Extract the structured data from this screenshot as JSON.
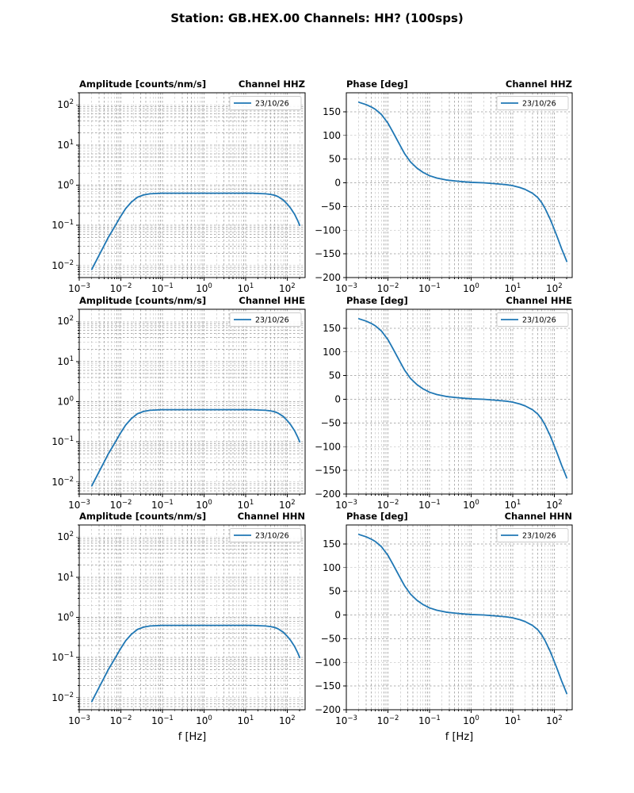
{
  "title": "Station: GB.HEX.00 Channels: HH? (100sps)",
  "xlabel": "f [Hz]",
  "legend_label": "23/10/26",
  "style": {
    "line_color": "#1f77b4",
    "grid_color": "#b0b0b0",
    "axis_color": "#000000",
    "legend_border": "#cccccc",
    "background": "#ffffff"
  },
  "chart_data": [
    {
      "type": "line",
      "kind": "amplitude",
      "row": 0,
      "col": 0,
      "title": "Amplitude [counts/nm/s]",
      "channel": "Channel HHZ",
      "legend": "23/10/26",
      "xscale": "log",
      "yscale": "log",
      "xlim": [
        0.001,
        270
      ],
      "ylim": [
        0.005,
        200
      ],
      "xticks": [
        -3,
        -2,
        -1,
        0,
        1,
        2
      ],
      "yticks": [
        -2,
        -1,
        0,
        1,
        2
      ],
      "x": [
        0.002,
        0.003,
        0.004,
        0.005,
        0.007,
        0.01,
        0.013,
        0.018,
        0.025,
        0.035,
        0.05,
        0.07,
        0.1,
        0.15,
        0.25,
        0.4,
        0.7,
        1,
        2,
        4,
        7,
        10,
        15,
        20,
        30,
        40,
        50,
        60,
        80,
        100,
        120,
        150,
        180,
        200
      ],
      "y": [
        0.008,
        0.018,
        0.032,
        0.05,
        0.09,
        0.17,
        0.26,
        0.38,
        0.5,
        0.57,
        0.61,
        0.62,
        0.63,
        0.63,
        0.63,
        0.63,
        0.63,
        0.63,
        0.63,
        0.63,
        0.63,
        0.63,
        0.63,
        0.62,
        0.61,
        0.59,
        0.56,
        0.52,
        0.43,
        0.34,
        0.27,
        0.19,
        0.13,
        0.1
      ]
    },
    {
      "type": "line",
      "kind": "phase",
      "row": 0,
      "col": 1,
      "title": "Phase [deg]",
      "channel": "Channel HHZ",
      "legend": "23/10/26",
      "xscale": "log",
      "yscale": "linear",
      "xlim": [
        0.001,
        270
      ],
      "ylim": [
        -200,
        190
      ],
      "xticks": [
        -3,
        -2,
        -1,
        0,
        1,
        2
      ],
      "yticks": [
        -200,
        -150,
        -100,
        -50,
        0,
        50,
        100,
        150
      ],
      "x": [
        0.002,
        0.003,
        0.004,
        0.005,
        0.007,
        0.01,
        0.013,
        0.018,
        0.025,
        0.035,
        0.05,
        0.07,
        0.1,
        0.15,
        0.25,
        0.4,
        0.7,
        1,
        2,
        4,
        7,
        10,
        15,
        20,
        30,
        40,
        50,
        60,
        80,
        100,
        120,
        150,
        180,
        200
      ],
      "y": [
        170,
        165,
        160,
        155,
        144,
        126,
        108,
        85,
        62,
        44,
        31,
        22,
        15,
        10,
        6,
        4,
        2,
        1,
        0,
        -2,
        -4,
        -6,
        -10,
        -14,
        -22,
        -31,
        -42,
        -54,
        -77,
        -98,
        -116,
        -139,
        -156,
        -166
      ]
    },
    {
      "type": "line",
      "kind": "amplitude",
      "row": 1,
      "col": 0,
      "title": "Amplitude [counts/nm/s]",
      "channel": "Channel HHE",
      "legend": "23/10/26",
      "xscale": "log",
      "yscale": "log",
      "xlim": [
        0.001,
        270
      ],
      "ylim": [
        0.005,
        200
      ],
      "xticks": [
        -3,
        -2,
        -1,
        0,
        1,
        2
      ],
      "yticks": [
        -2,
        -1,
        0,
        1,
        2
      ],
      "x": [
        0.002,
        0.003,
        0.004,
        0.005,
        0.007,
        0.01,
        0.013,
        0.018,
        0.025,
        0.035,
        0.05,
        0.07,
        0.1,
        0.15,
        0.25,
        0.4,
        0.7,
        1,
        2,
        4,
        7,
        10,
        15,
        20,
        30,
        40,
        50,
        60,
        80,
        100,
        120,
        150,
        180,
        200
      ],
      "y": [
        0.008,
        0.018,
        0.032,
        0.05,
        0.09,
        0.17,
        0.26,
        0.38,
        0.5,
        0.57,
        0.61,
        0.62,
        0.63,
        0.63,
        0.63,
        0.63,
        0.63,
        0.63,
        0.63,
        0.63,
        0.63,
        0.63,
        0.63,
        0.62,
        0.61,
        0.59,
        0.56,
        0.52,
        0.43,
        0.34,
        0.27,
        0.19,
        0.13,
        0.1
      ]
    },
    {
      "type": "line",
      "kind": "phase",
      "row": 1,
      "col": 1,
      "title": "Phase [deg]",
      "channel": "Channel HHE",
      "legend": "23/10/26",
      "xscale": "log",
      "yscale": "linear",
      "xlim": [
        0.001,
        270
      ],
      "ylim": [
        -200,
        190
      ],
      "xticks": [
        -3,
        -2,
        -1,
        0,
        1,
        2
      ],
      "yticks": [
        -200,
        -150,
        -100,
        -50,
        0,
        50,
        100,
        150
      ],
      "x": [
        0.002,
        0.003,
        0.004,
        0.005,
        0.007,
        0.01,
        0.013,
        0.018,
        0.025,
        0.035,
        0.05,
        0.07,
        0.1,
        0.15,
        0.25,
        0.4,
        0.7,
        1,
        2,
        4,
        7,
        10,
        15,
        20,
        30,
        40,
        50,
        60,
        80,
        100,
        120,
        150,
        180,
        200
      ],
      "y": [
        170,
        165,
        160,
        155,
        144,
        126,
        108,
        85,
        62,
        44,
        31,
        22,
        15,
        10,
        6,
        4,
        2,
        1,
        0,
        -2,
        -4,
        -6,
        -10,
        -14,
        -22,
        -31,
        -42,
        -54,
        -77,
        -98,
        -116,
        -139,
        -156,
        -166
      ]
    },
    {
      "type": "line",
      "kind": "amplitude",
      "row": 2,
      "col": 0,
      "title": "Amplitude [counts/nm/s]",
      "channel": "Channel HHN",
      "legend": "23/10/26",
      "xscale": "log",
      "yscale": "log",
      "xlim": [
        0.001,
        270
      ],
      "ylim": [
        0.005,
        200
      ],
      "xticks": [
        -3,
        -2,
        -1,
        0,
        1,
        2
      ],
      "yticks": [
        -2,
        -1,
        0,
        1,
        2
      ],
      "x": [
        0.002,
        0.003,
        0.004,
        0.005,
        0.007,
        0.01,
        0.013,
        0.018,
        0.025,
        0.035,
        0.05,
        0.07,
        0.1,
        0.15,
        0.25,
        0.4,
        0.7,
        1,
        2,
        4,
        7,
        10,
        15,
        20,
        30,
        40,
        50,
        60,
        80,
        100,
        120,
        150,
        180,
        200
      ],
      "y": [
        0.008,
        0.018,
        0.032,
        0.05,
        0.09,
        0.17,
        0.26,
        0.38,
        0.5,
        0.57,
        0.61,
        0.62,
        0.63,
        0.63,
        0.63,
        0.63,
        0.63,
        0.63,
        0.63,
        0.63,
        0.63,
        0.63,
        0.63,
        0.62,
        0.61,
        0.59,
        0.56,
        0.52,
        0.43,
        0.34,
        0.27,
        0.19,
        0.13,
        0.1
      ]
    },
    {
      "type": "line",
      "kind": "phase",
      "row": 2,
      "col": 1,
      "title": "Phase [deg]",
      "channel": "Channel HHN",
      "legend": "23/10/26",
      "xscale": "log",
      "yscale": "linear",
      "xlim": [
        0.001,
        270
      ],
      "ylim": [
        -200,
        190
      ],
      "xticks": [
        -3,
        -2,
        -1,
        0,
        1,
        2
      ],
      "yticks": [
        -200,
        -150,
        -100,
        -50,
        0,
        50,
        100,
        150
      ],
      "x": [
        0.002,
        0.003,
        0.004,
        0.005,
        0.007,
        0.01,
        0.013,
        0.018,
        0.025,
        0.035,
        0.05,
        0.07,
        0.1,
        0.15,
        0.25,
        0.4,
        0.7,
        1,
        2,
        4,
        7,
        10,
        15,
        20,
        30,
        40,
        50,
        60,
        80,
        100,
        120,
        150,
        180,
        200
      ],
      "y": [
        170,
        165,
        160,
        155,
        144,
        126,
        108,
        85,
        62,
        44,
        31,
        22,
        15,
        10,
        6,
        4,
        2,
        1,
        0,
        -2,
        -4,
        -6,
        -10,
        -14,
        -22,
        -31,
        -42,
        -54,
        -77,
        -98,
        -116,
        -139,
        -156,
        -166
      ]
    }
  ]
}
